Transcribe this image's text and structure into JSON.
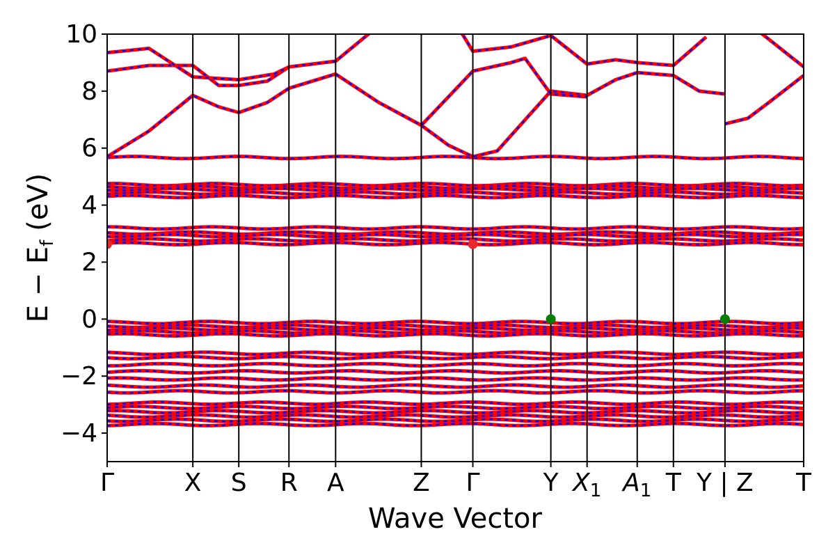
{
  "chart_data": {
    "type": "line",
    "title": "",
    "xlabel": "Wave Vector",
    "ylabel": "E − E_f (eV)",
    "ylabel_parts": {
      "main": "E  −  E",
      "sub": "f",
      "tail": " (eV)"
    },
    "ylim": [
      -5,
      10
    ],
    "yticks": [
      -4,
      -2,
      0,
      2,
      4,
      6,
      8,
      10
    ],
    "ytick_labels": [
      "−4",
      "−2",
      "0",
      "2",
      "4",
      "6",
      "8",
      "10"
    ],
    "grid": false,
    "legend": "none",
    "colors": {
      "band_primary": "#ff0000",
      "band_secondary": "#0000ff",
      "vbm_marker": "#008000",
      "cbm_marker": "#e8282c"
    },
    "kpoints": [
      {
        "label": "Γ",
        "x": 0.0
      },
      {
        "label": "X",
        "x": 1.23
      },
      {
        "label": "S",
        "x": 1.89
      },
      {
        "label": "R",
        "x": 2.61
      },
      {
        "label": "A",
        "x": 3.28
      },
      {
        "label": "Z",
        "x": 4.51
      },
      {
        "label": "Γ",
        "x": 5.25
      },
      {
        "label": "Y",
        "x": 6.37
      },
      {
        "label": "X",
        "sub": "1",
        "x": 6.89
      },
      {
        "label": "A",
        "sub": "1",
        "x": 7.61
      },
      {
        "label": "T",
        "x": 8.13
      },
      {
        "label": "Y | Z",
        "x": 8.87
      },
      {
        "label": "T",
        "x": 10.0
      }
    ],
    "xlim": [
      0,
      10
    ],
    "markers": [
      {
        "type": "cbm",
        "x": 0.0,
        "y": 2.63
      },
      {
        "type": "cbm",
        "x": 5.25,
        "y": 2.63
      },
      {
        "type": "vbm",
        "x": 6.37,
        "y": 0.0
      },
      {
        "type": "vbm",
        "x": 8.87,
        "y": 0.0
      }
    ],
    "flat_bands": [
      {
        "y": 5.67
      },
      {
        "y": 4.72
      },
      {
        "y": 4.63
      },
      {
        "y": 4.55
      },
      {
        "y": 4.42
      },
      {
        "y": 4.3
      },
      {
        "y": 3.2
      },
      {
        "y": 3.02
      },
      {
        "y": 2.93
      },
      {
        "y": 2.78
      },
      {
        "y": 2.65
      },
      {
        "y": -0.12
      },
      {
        "y": -0.25
      },
      {
        "y": -0.35
      },
      {
        "y": -0.45
      },
      {
        "y": -0.55
      },
      {
        "y": -1.2
      },
      {
        "y": -1.35
      },
      {
        "y": -1.6
      },
      {
        "y": -1.85
      },
      {
        "y": -2.1
      },
      {
        "y": -2.35
      },
      {
        "y": -2.55
      },
      {
        "y": -2.95
      },
      {
        "y": -3.1
      },
      {
        "y": -3.25
      },
      {
        "y": -3.4
      },
      {
        "y": -3.55
      },
      {
        "y": -3.7
      }
    ],
    "dispersive_bands": [
      {
        "name": "c1",
        "points": [
          [
            0,
            5.7
          ],
          [
            0.6,
            6.6
          ],
          [
            1.23,
            7.85
          ],
          [
            1.6,
            7.45
          ],
          [
            1.89,
            7.25
          ],
          [
            2.3,
            7.6
          ],
          [
            2.61,
            8.1
          ],
          [
            3.28,
            8.6
          ],
          [
            3.9,
            7.6
          ],
          [
            4.51,
            6.8
          ],
          [
            4.9,
            6.1
          ],
          [
            5.25,
            5.7
          ],
          [
            5.6,
            5.9
          ],
          [
            6.37,
            8.0
          ],
          [
            6.89,
            7.85
          ],
          [
            7.3,
            8.4
          ],
          [
            7.61,
            8.65
          ],
          [
            8.13,
            8.55
          ],
          [
            8.5,
            8.0
          ],
          [
            8.87,
            7.9
          ]
        ]
      },
      {
        "name": "c2",
        "points": [
          [
            0,
            8.7
          ],
          [
            0.6,
            8.9
          ],
          [
            1.23,
            8.9
          ],
          [
            1.6,
            8.2
          ],
          [
            1.89,
            8.2
          ],
          [
            2.3,
            8.35
          ],
          [
            2.61,
            8.85
          ],
          [
            3.28,
            9.05
          ],
          [
            3.9,
            10.3
          ]
        ]
      },
      {
        "name": "c3",
        "points": [
          [
            0,
            9.35
          ],
          [
            0.6,
            9.5
          ],
          [
            1.23,
            8.5
          ],
          [
            1.89,
            8.4
          ],
          [
            2.4,
            8.6
          ],
          [
            2.61,
            8.85
          ]
        ]
      },
      {
        "name": "c4",
        "points": [
          [
            4.51,
            6.8
          ],
          [
            4.9,
            7.8
          ],
          [
            5.25,
            8.7
          ],
          [
            5.8,
            9.0
          ],
          [
            6.0,
            9.15
          ],
          [
            6.37,
            7.9
          ],
          [
            6.89,
            7.8
          ]
        ]
      },
      {
        "name": "c5",
        "points": [
          [
            5.0,
            10.4
          ],
          [
            5.25,
            9.4
          ],
          [
            5.8,
            9.55
          ],
          [
            6.37,
            9.95
          ],
          [
            6.89,
            8.95
          ],
          [
            7.3,
            9.1
          ],
          [
            7.61,
            9.0
          ],
          [
            8.13,
            8.9
          ],
          [
            8.6,
            9.9
          ]
        ]
      },
      {
        "name": "c6",
        "points": [
          [
            8.87,
            6.85
          ],
          [
            9.2,
            7.05
          ],
          [
            9.5,
            7.6
          ],
          [
            10.0,
            8.55
          ]
        ]
      },
      {
        "name": "c7",
        "points": [
          [
            9.2,
            10.4
          ],
          [
            10.0,
            8.85
          ]
        ]
      }
    ]
  }
}
